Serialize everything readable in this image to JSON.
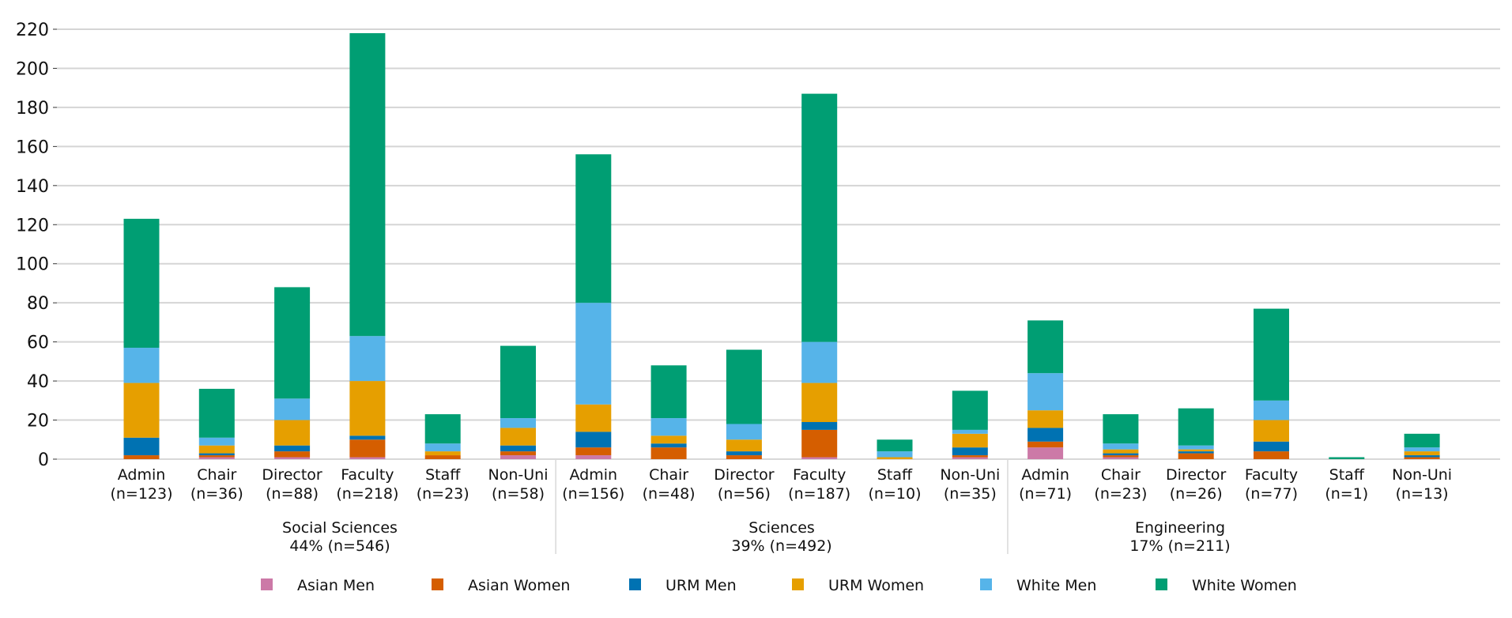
{
  "chart_data": {
    "type": "bar",
    "stacked": true,
    "ylim": [
      0,
      220
    ],
    "yticks": [
      0,
      20,
      40,
      60,
      80,
      100,
      120,
      140,
      160,
      180,
      200,
      220
    ],
    "grid": true,
    "legend_position": "bottom",
    "groups": [
      {
        "label": [
          "Social Sciences",
          "44% (n=546)"
        ],
        "categories": [
          {
            "label": [
              "Admin",
              "(n=123)"
            ],
            "values": [
              0,
              2,
              9,
              28,
              18,
              66
            ]
          },
          {
            "label": [
              "Chair",
              "(n=36)"
            ],
            "values": [
              1,
              1,
              1,
              4,
              4,
              25
            ]
          },
          {
            "label": [
              "Director",
              "(n=88)"
            ],
            "values": [
              1,
              3,
              3,
              13,
              11,
              57
            ]
          },
          {
            "label": [
              "Faculty",
              "(n=218)"
            ],
            "values": [
              1,
              9,
              2,
              28,
              23,
              155
            ]
          },
          {
            "label": [
              "Staff",
              "(n=23)"
            ],
            "values": [
              0,
              2,
              0,
              2,
              4,
              15
            ]
          },
          {
            "label": [
              "Non-Uni",
              "(n=58)"
            ],
            "values": [
              2,
              2,
              3,
              9,
              5,
              37
            ]
          }
        ]
      },
      {
        "label": [
          "Sciences",
          "39% (n=492)"
        ],
        "categories": [
          {
            "label": [
              "Admin",
              "(n=156)"
            ],
            "values": [
              2,
              4,
              8,
              14,
              52,
              76
            ]
          },
          {
            "label": [
              "Chair",
              "(n=48)"
            ],
            "values": [
              0,
              6,
              2,
              4,
              9,
              27
            ]
          },
          {
            "label": [
              "Director",
              "(n=56)"
            ],
            "values": [
              0,
              2,
              2,
              6,
              8,
              38
            ]
          },
          {
            "label": [
              "Faculty",
              "(n=187)"
            ],
            "values": [
              1,
              14,
              4,
              20,
              21,
              127
            ]
          },
          {
            "label": [
              "Staff",
              "(n=10)"
            ],
            "values": [
              0,
              0,
              0,
              1,
              3,
              6
            ]
          },
          {
            "label": [
              "Non-Uni",
              "(n=35)"
            ],
            "values": [
              1,
              1,
              4,
              7,
              2,
              20
            ]
          }
        ]
      },
      {
        "label": [
          "Engineering",
          "17% (n=211)"
        ],
        "categories": [
          {
            "label": [
              "Admin",
              "(n=71)"
            ],
            "values": [
              6,
              3,
              7,
              9,
              19,
              27
            ]
          },
          {
            "label": [
              "Chair",
              "(n=23)"
            ],
            "values": [
              1,
              1,
              1,
              2,
              3,
              15
            ]
          },
          {
            "label": [
              "Director",
              "(n=26)"
            ],
            "values": [
              0,
              3,
              1,
              1,
              2,
              19
            ]
          },
          {
            "label": [
              "Faculty",
              "(n=77)"
            ],
            "values": [
              0,
              4,
              5,
              11,
              10,
              47
            ]
          },
          {
            "label": [
              "Staff",
              "(n=1)"
            ],
            "values": [
              0,
              0,
              0,
              0,
              0,
              1
            ]
          },
          {
            "label": [
              "Non-Uni",
              "(n=13)"
            ],
            "values": [
              0,
              1,
              1,
              2,
              2,
              7
            ]
          }
        ]
      }
    ],
    "series": [
      {
        "name": "Asian Men",
        "color": "#cc79a7"
      },
      {
        "name": "Asian Women",
        "color": "#d55e00"
      },
      {
        "name": "URM Men",
        "color": "#0072b2"
      },
      {
        "name": "URM Women",
        "color": "#e69f00"
      },
      {
        "name": "White Men",
        "color": "#56b4e9"
      },
      {
        "name": "White Women",
        "color": "#009e73"
      }
    ]
  }
}
